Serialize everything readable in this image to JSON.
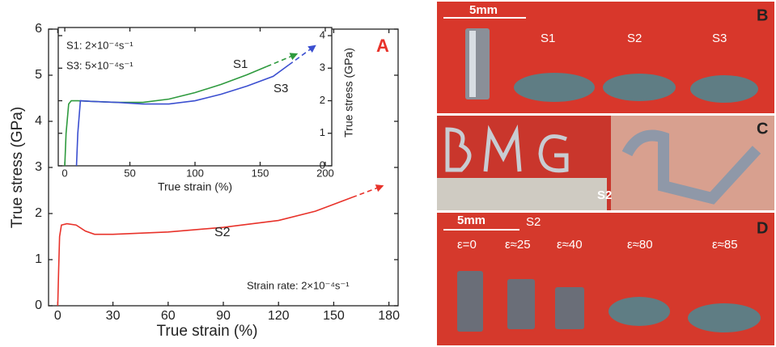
{
  "chart_data": [
    {
      "type": "line",
      "panel_label": "A",
      "x_label": "True strain (%)",
      "y_label": "True stress (GPa)",
      "annotation": "Strain rate: 2×10⁻⁴s⁻¹",
      "xlim": [
        -5,
        185
      ],
      "xticks": [
        0,
        30,
        60,
        90,
        120,
        150,
        180
      ],
      "ylim": [
        0,
        6
      ],
      "yticks": [
        0,
        1,
        2,
        3,
        4,
        5,
        6
      ],
      "series": [
        {
          "name": "S2",
          "color": "#e8322a",
          "x": [
            0,
            0.5,
            1,
            2,
            5,
            10,
            15,
            20,
            30,
            60,
            90,
            120,
            140,
            160
          ],
          "values": [
            0,
            0.8,
            1.5,
            1.75,
            1.78,
            1.75,
            1.62,
            1.55,
            1.55,
            1.6,
            1.7,
            1.85,
            2.05,
            2.35
          ]
        }
      ]
    },
    {
      "type": "line",
      "x_label": "True strain (%)",
      "y_label": "True stress (GPa)",
      "legend_texts": [
        "S1: 2×10⁻⁴s⁻¹",
        "S3: 5×10⁻⁴s⁻¹"
      ],
      "xlim": [
        -5,
        205
      ],
      "xticks": [
        0,
        50,
        100,
        150,
        200
      ],
      "ylim": [
        0,
        4.25
      ],
      "yticks": [
        0,
        1,
        2,
        3,
        4
      ],
      "series": [
        {
          "name": "S1",
          "color": "#2e9a3e",
          "x": [
            0,
            1,
            3,
            5,
            10,
            20,
            40,
            60,
            80,
            100,
            120,
            140,
            155
          ],
          "values": [
            0,
            1,
            1.9,
            2.0,
            2.0,
            1.98,
            1.95,
            1.95,
            2.05,
            2.25,
            2.5,
            2.8,
            3.05
          ]
        },
        {
          "name": "S3",
          "color": "#3b4fd0",
          "x": [
            9,
            10,
            12,
            20,
            40,
            60,
            80,
            100,
            120,
            140,
            160,
            172
          ],
          "values": [
            0,
            1,
            2.0,
            1.98,
            1.95,
            1.9,
            1.9,
            2.0,
            2.2,
            2.45,
            2.75,
            3.1
          ]
        }
      ]
    }
  ],
  "photos": {
    "B": {
      "label": "B",
      "scale": "5mm",
      "samples": [
        "S1",
        "S2",
        "S3"
      ]
    },
    "C": {
      "label": "C",
      "sample": "S2"
    },
    "D": {
      "label": "D",
      "scale": "5mm",
      "sample": "S2",
      "strains": [
        "ε=0",
        "ε≈25",
        "ε≈40",
        "ε≈80",
        "ε≈85"
      ]
    }
  }
}
